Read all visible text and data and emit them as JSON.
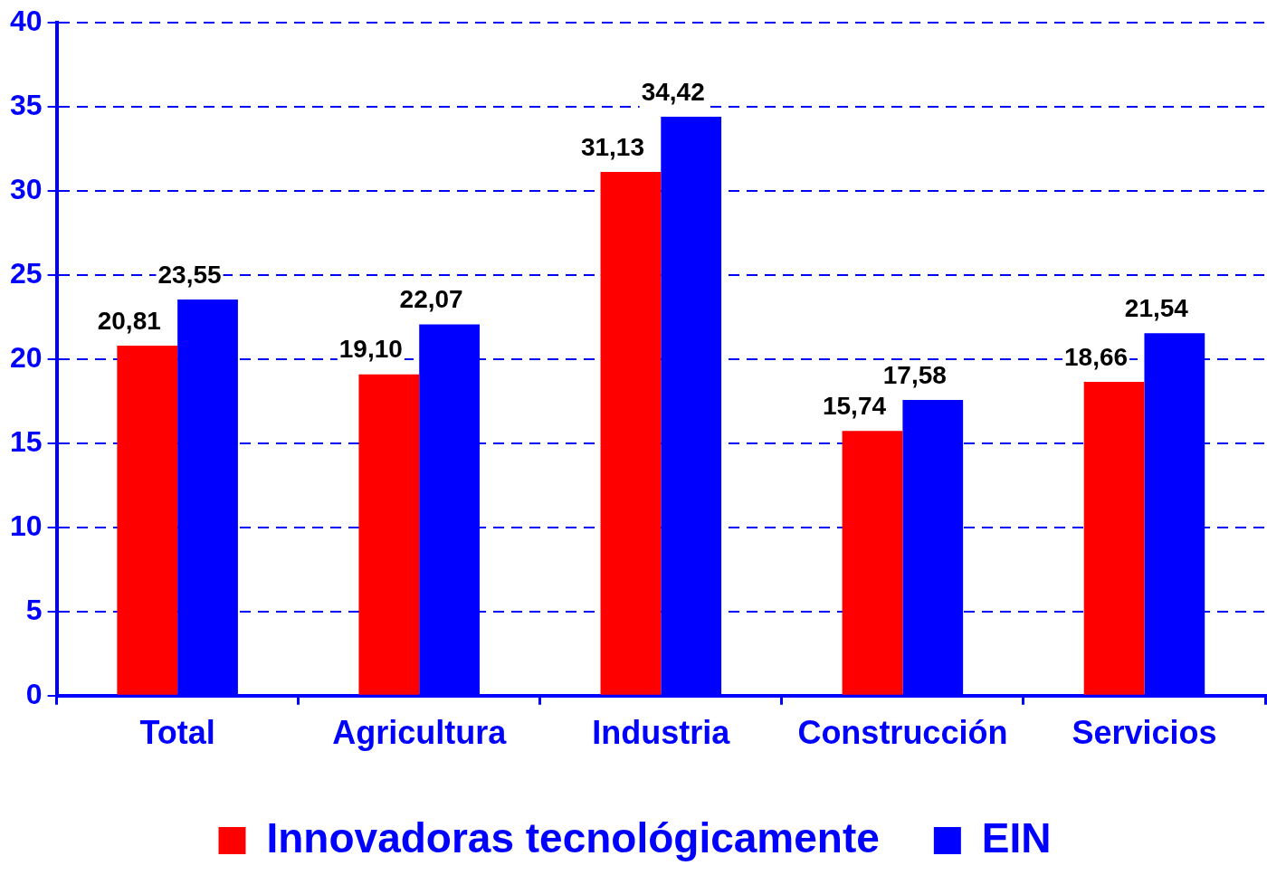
{
  "chart_data": {
    "type": "bar",
    "categories": [
      "Total",
      "Agricultura",
      "Industria",
      "Construcción",
      "Servicios"
    ],
    "series": [
      {
        "name": "Innovadoras tecnológicamente",
        "color": "#ff0000",
        "values": [
          20.81,
          19.1,
          31.13,
          15.74,
          18.66
        ],
        "value_labels": [
          "20,81",
          "19,10",
          "31,13",
          "15,74",
          "18,66"
        ]
      },
      {
        "name": "EIN",
        "color": "#0000ff",
        "values": [
          23.55,
          22.07,
          34.42,
          17.58,
          21.54
        ],
        "value_labels": [
          "23,55",
          "22,07",
          "34,42",
          "17,58",
          "21,54"
        ]
      }
    ],
    "ylim": [
      0,
      40
    ],
    "yticks": [
      0,
      5,
      10,
      15,
      20,
      25,
      30,
      35,
      40
    ],
    "grid": "y",
    "legend": "bottom"
  }
}
